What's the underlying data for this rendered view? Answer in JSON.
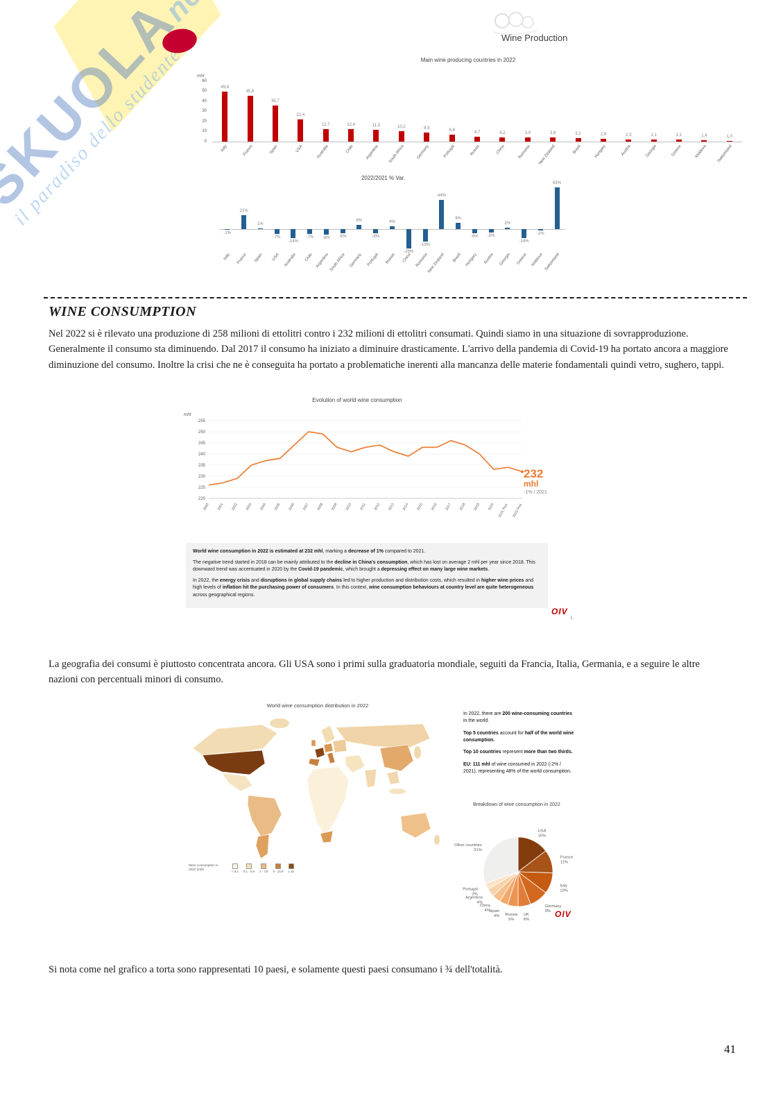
{
  "page": {
    "number": "41"
  },
  "header": {
    "title": "Wine Production"
  },
  "watermark": {
    "brand": "SKUOLA",
    "net": "net",
    "tagline": "il paradiso dello studente"
  },
  "section_heading": "WINE CONSUMPTION",
  "paragraphs": {
    "p1": "Nel 2022 si è rilevato una produzione di 258 milioni di ettolitri contro i 232 milioni di ettolitri consumati. Quindi siamo in una situazione di sovrapproduzione. Generalmente il consumo sta diminuendo. Dal 2017 il consumo ha iniziato a diminuire drasticamente. L'arrivo della pandemia di Covid-19 ha portato ancora a maggiore diminuzione del consumo. Inoltre la crisi che ne è conseguita ha portato a problematiche inerenti alla mancanza delle materie fondamentali quindi vetro, sughero, tappi.",
    "p2": "La geografia dei consumi  è piuttosto concentrata ancora. Gli USA sono i primi sulla graduatoria mondiale, seguiti da Francia, Italia, Germania, e a seguire le altre nazioni con percentuali minori di consumo.",
    "p3": "Si nota come nel grafico a torta sono rappresentati 10 paesi, e solamente questi paesi consumano i ¾ dell'totalità."
  },
  "oiv": {
    "label": "OIV",
    "footnote": "1."
  },
  "consumption_note": {
    "blocks": [
      [
        {
          "t": "World wine consumption in 2022 is estimated at 232 mhl",
          "b": true
        },
        {
          "t": ", marking a ",
          "b": false
        },
        {
          "t": "decrease of 1%",
          "b": true
        },
        {
          "t": " compared to 2021.",
          "b": false
        }
      ],
      [
        {
          "t": "The negative trend started in 2018 can be mainly attributed to the ",
          "b": false
        },
        {
          "t": "decline in China's consumption",
          "b": true
        },
        {
          "t": ", which has lost on average 2 mhl per year since 2018. This downward trend was accentuated in 2020 by the ",
          "b": false
        },
        {
          "t": "Covid-19 pandemic",
          "b": true
        },
        {
          "t": ", which brought a ",
          "b": false
        },
        {
          "t": "depressing effect on many large wine markets",
          "b": true
        },
        {
          "t": ".",
          "b": false
        }
      ],
      [
        {
          "t": "In 2022, the ",
          "b": false
        },
        {
          "t": "energy crisis",
          "b": true
        },
        {
          "t": " and ",
          "b": false
        },
        {
          "t": "disruptions in global supply chains",
          "b": true
        },
        {
          "t": " led to higher production and distribution costs, which resulted in ",
          "b": false
        },
        {
          "t": "higher wine prices",
          "b": true
        },
        {
          "t": " and high levels of ",
          "b": false
        },
        {
          "t": "inflation hit the purchasing power of consumers",
          "b": true
        },
        {
          "t": ". In this context, ",
          "b": false
        },
        {
          "t": "wine consumption behaviours at country level are quite heterogeneous",
          "b": true
        },
        {
          "t": " across geographical regions.",
          "b": false
        }
      ]
    ]
  },
  "map_facts": {
    "lines": [
      [
        {
          "t": "In 2022, there are ",
          "b": false
        },
        {
          "t": "200 wine-consuming countries",
          "b": true
        },
        {
          "t": " in the world.",
          "b": false
        }
      ],
      [
        {
          "t": "Top 5 countries",
          "b": true
        },
        {
          "t": " account for ",
          "b": false
        },
        {
          "t": "half of the world wine consumption.",
          "b": true
        }
      ],
      [
        {
          "t": "Top 10 countries",
          "b": true
        },
        {
          "t": " represent ",
          "b": false
        },
        {
          "t": "more than two thirds.",
          "b": true
        }
      ],
      [
        {
          "t": "EU: 111 mhl",
          "b": true
        },
        {
          "t": " of wine consumed in 2022 (-2% / 2021), representing 48% of the world consumption.",
          "b": false
        }
      ]
    ]
  },
  "chart_data": [
    {
      "type": "bar",
      "title": "Main wine producing countries in 2022",
      "ylabel": "mhl",
      "ylim": [
        0,
        60
      ],
      "yticks": [
        0,
        10,
        20,
        30,
        40,
        50,
        60
      ],
      "categories": [
        "Italy",
        "France",
        "Spain",
        "USA",
        "Australia",
        "Chile",
        "Argentina",
        "South Africa",
        "Germany",
        "Portugal",
        "Russia",
        "China",
        "Romania",
        "New Zealand",
        "Brazil",
        "Hungary",
        "Austria",
        "Georgia",
        "Greece",
        "Moldova",
        "Switzerland"
      ],
      "values": [
        49.8,
        45.6,
        35.7,
        22.4,
        12.7,
        12.4,
        11.5,
        10.2,
        8.9,
        6.8,
        4.7,
        4.2,
        3.9,
        3.8,
        3.2,
        2.9,
        2.3,
        2.1,
        2.1,
        1.4,
        1.0
      ],
      "value_labels": [
        "49,8",
        "45,6",
        "35,7",
        "22,4",
        "12,7",
        "12,4",
        "11,5",
        "10,2",
        "8,9",
        "6,8",
        "4,7",
        "4,2",
        "3,9",
        "3,8",
        "3,2",
        "2,9",
        "2,3",
        "2,1",
        "2,1",
        "1,4",
        "1,0"
      ],
      "bar_color": "#C00000"
    },
    {
      "type": "bar",
      "title": "2022/2021 % Var.",
      "categories": [
        "Italy",
        "France",
        "Spain",
        "USA",
        "Australia",
        "Chile",
        "Argentina",
        "South Africa",
        "Germany",
        "Portugal",
        "Russia",
        "China",
        "Romania",
        "New Zealand",
        "Brazil",
        "Hungary",
        "Austria",
        "Georgia",
        "Greece",
        "Moldova",
        "Switzerland"
      ],
      "values": [
        -1,
        21,
        1,
        -7,
        -14,
        -7,
        -8,
        -6,
        6,
        -6,
        4,
        -29,
        -19,
        44,
        9,
        -6,
        -5,
        2,
        -14,
        -2,
        63
      ],
      "value_labels": [
        "-1%",
        "21%",
        "1%",
        "-7%",
        "-14%",
        "-7%",
        "-8%",
        "-6%",
        "6%",
        "-6%",
        "4%",
        "-29%",
        "-19%",
        "44%",
        "9%",
        "-6%",
        "-5%",
        "2%",
        "-14%",
        "-2%",
        "63%"
      ],
      "ylim": [
        -35,
        70
      ],
      "bar_color": "#255E91"
    },
    {
      "type": "line",
      "title": "Evolution of world wine consumption",
      "ylabel": "mhl",
      "ylim": [
        220,
        255
      ],
      "yticks": [
        220,
        225,
        230,
        235,
        240,
        245,
        250,
        255
      ],
      "x": [
        "2000",
        "2001",
        "2002",
        "2003",
        "2004",
        "2005",
        "2006",
        "2007",
        "2008",
        "2009",
        "2010",
        "2011",
        "2012",
        "2013",
        "2014",
        "2015",
        "2016",
        "2017",
        "2018",
        "2019",
        "2020",
        "2021 Prel.",
        "2022 Prel."
      ],
      "values": [
        226,
        227,
        229,
        235,
        237,
        238,
        244,
        250,
        249,
        243,
        241,
        243,
        244,
        241,
        239,
        243,
        243,
        246,
        244,
        240,
        233,
        234,
        232
      ],
      "line_color": "#ED7D31",
      "annotation": {
        "value": "232",
        "unit": "mhl",
        "sub": "-1% / 2021"
      }
    },
    {
      "type": "map",
      "title": "World wine consumption distribution in 2022",
      "legend_title": "Wine consumption in 2022 (mhl)",
      "legend": [
        {
          "label": "< 0.1",
          "color": "#FBF2E1"
        },
        {
          "label": "0.1 - 0.9",
          "color": "#F6DFBA"
        },
        {
          "label": "1 - 4.9",
          "color": "#EDB97F"
        },
        {
          "label": "5 - 14.9",
          "color": "#C9803E"
        },
        {
          "label": "≥ 15",
          "color": "#8A4A16"
        }
      ]
    },
    {
      "type": "pie",
      "title": "Breakdown of wine consumption in 2022",
      "slices": [
        {
          "label": "USA",
          "pct": 15,
          "color": "#843C0C"
        },
        {
          "label": "France",
          "pct": 11,
          "color": "#A85418"
        },
        {
          "label": "Italy",
          "pct": 10,
          "color": "#C55A11"
        },
        {
          "label": "Germany",
          "pct": 9,
          "color": "#D2691E"
        },
        {
          "label": "UK",
          "pct": 6,
          "color": "#E07E39"
        },
        {
          "label": "Russia",
          "pct": 5,
          "color": "#ED9453"
        },
        {
          "label": "Spain",
          "pct": 4,
          "color": "#F2A96B"
        },
        {
          "label": "China",
          "pct": 4,
          "color": "#F6BE8A"
        },
        {
          "label": "Argentina",
          "pct": 4,
          "color": "#F9D2A9"
        },
        {
          "label": "Portugal",
          "pct": 3,
          "color": "#FBE4C8"
        },
        {
          "label": "Other countries",
          "pct": 31,
          "color": "#EFEFED"
        }
      ]
    }
  ]
}
